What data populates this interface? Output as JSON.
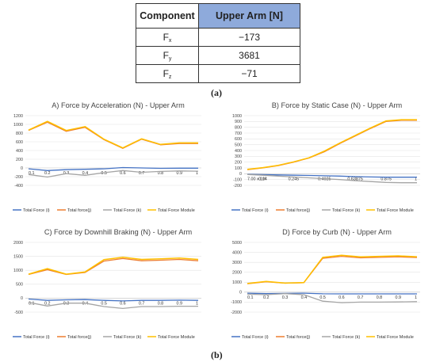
{
  "table": {
    "header_component": "Component",
    "header_value": "Upper Arm [N]",
    "rows": [
      {
        "label_main": "F",
        "label_sub": "x",
        "value": "−173"
      },
      {
        "label_main": "F",
        "label_sub": "y",
        "value": "3681"
      },
      {
        "label_main": "F",
        "label_sub": "z",
        "value": "−71"
      }
    ]
  },
  "captions": {
    "a": "(a)",
    "b": "(b)"
  },
  "colors": {
    "i": "#4472c4",
    "j": "#ed7d31",
    "k": "#a5a5a5",
    "module": "#ffc000"
  },
  "chart_data": [
    {
      "type": "line",
      "title": "A) Force by Acceleration (N) - Upper Arm",
      "categories": [
        "0.1",
        "0.2",
        "0.3",
        "0.4",
        "0.5",
        "0.6",
        "0.7",
        "0.8",
        "0.9",
        "1"
      ],
      "ylim": [
        -400,
        1200
      ],
      "yticks": [
        -400,
        -200,
        0,
        200,
        400,
        600,
        800,
        1000,
        1200
      ],
      "grid": true,
      "legend": "bottom",
      "series": [
        {
          "name": "Total Force (i)",
          "key": "i",
          "values": [
            -20,
            -60,
            -40,
            -30,
            -20,
            10,
            0,
            -10,
            -5,
            -5
          ]
        },
        {
          "name": "Total force(j)",
          "key": "j",
          "values": [
            860,
            1050,
            840,
            930,
            650,
            450,
            660,
            530,
            560,
            560
          ]
        },
        {
          "name": "Total Force (k)",
          "key": "k",
          "values": [
            -150,
            -210,
            -130,
            -170,
            -110,
            -60,
            -100,
            -80,
            -70,
            -75
          ]
        },
        {
          "name": "Total Force Module",
          "key": "module",
          "values": [
            870,
            1070,
            860,
            950,
            660,
            460,
            670,
            540,
            575,
            575
          ]
        }
      ]
    },
    {
      "type": "line",
      "title": "B) Force by Static Case (N) - Upper Arm",
      "categories": [
        "7.00 x 10²",
        "0.14",
        "",
        "0.245",
        "",
        "0.4025",
        "",
        "0.63875",
        "",
        "0.875",
        "",
        "1"
      ],
      "ylim": [
        -200,
        1000
      ],
      "yticks": [
        -200,
        -100,
        0,
        100,
        200,
        300,
        400,
        500,
        600,
        700,
        800,
        900,
        1000
      ],
      "grid": true,
      "legend": "bottom",
      "series": [
        {
          "name": "Total Force (i)",
          "key": "i",
          "values": [
            -10,
            -15,
            -20,
            -25,
            -30,
            -35,
            -40,
            -50,
            -55,
            -60,
            -60,
            -60
          ]
        },
        {
          "name": "Total force(j)",
          "key": "j",
          "values": [
            70,
            100,
            140,
            200,
            270,
            380,
            520,
            650,
            780,
            900,
            920,
            920
          ]
        },
        {
          "name": "Total Force (k)",
          "key": "k",
          "values": [
            -15,
            -25,
            -40,
            -55,
            -70,
            -85,
            -100,
            -120,
            -135,
            -150,
            -155,
            -155
          ]
        },
        {
          "name": "Total Force Module",
          "key": "module",
          "values": [
            75,
            105,
            145,
            205,
            275,
            390,
            530,
            660,
            790,
            910,
            930,
            930
          ]
        }
      ]
    },
    {
      "type": "line",
      "title": "C) Force by Downhill Braking (N) - Upper Arm",
      "categories": [
        "0.1",
        "0.2",
        "0.3",
        "0.4",
        "0.5",
        "0.6",
        "0.7",
        "0.8",
        "0.9",
        "1"
      ],
      "ylim": [
        -500,
        2000
      ],
      "yticks": [
        -500,
        0,
        500,
        1000,
        1500,
        2000
      ],
      "grid": true,
      "legend": "bottom",
      "series": [
        {
          "name": "Total Force (i)",
          "key": "i",
          "values": [
            -30,
            -80,
            -60,
            -50,
            -80,
            -100,
            -80,
            -80,
            -70,
            -80
          ]
        },
        {
          "name": "Total force(j)",
          "key": "j",
          "values": [
            850,
            1020,
            850,
            920,
            1330,
            1420,
            1340,
            1360,
            1390,
            1340
          ]
        },
        {
          "name": "Total Force (k)",
          "key": "k",
          "values": [
            -150,
            -280,
            -180,
            -180,
            -300,
            -370,
            -300,
            -300,
            -290,
            -290
          ]
        },
        {
          "name": "Total Force Module",
          "key": "module",
          "values": [
            860,
            1060,
            860,
            940,
            1380,
            1470,
            1390,
            1410,
            1440,
            1390
          ]
        }
      ]
    },
    {
      "type": "line",
      "title": "D) Force by Curb (N) - Upper Arm",
      "categories": [
        "0.1",
        "0.2",
        "0.3",
        "0.4",
        "0.5",
        "0.6",
        "0.7",
        "0.8",
        "0.9",
        "1"
      ],
      "ylim": [
        -2000,
        5000
      ],
      "yticks": [
        -2000,
        -1000,
        0,
        1000,
        2000,
        3000,
        4000,
        5000
      ],
      "grid": true,
      "legend": "bottom",
      "series": [
        {
          "name": "Total Force (i)",
          "key": "i",
          "values": [
            -100,
            -150,
            -120,
            -100,
            -160,
            -170,
            -170,
            -170,
            -170,
            -170
          ]
        },
        {
          "name": "Total force(j)",
          "key": "j",
          "values": [
            850,
            1050,
            900,
            950,
            3400,
            3600,
            3450,
            3500,
            3550,
            3480
          ]
        },
        {
          "name": "Total Force (k)",
          "key": "k",
          "values": [
            -200,
            -250,
            -150,
            -250,
            -900,
            -1050,
            -1000,
            -1000,
            -980,
            -950
          ]
        },
        {
          "name": "Total Force Module",
          "key": "module",
          "values": [
            870,
            1080,
            910,
            970,
            3500,
            3700,
            3550,
            3600,
            3650,
            3560
          ]
        }
      ]
    }
  ]
}
